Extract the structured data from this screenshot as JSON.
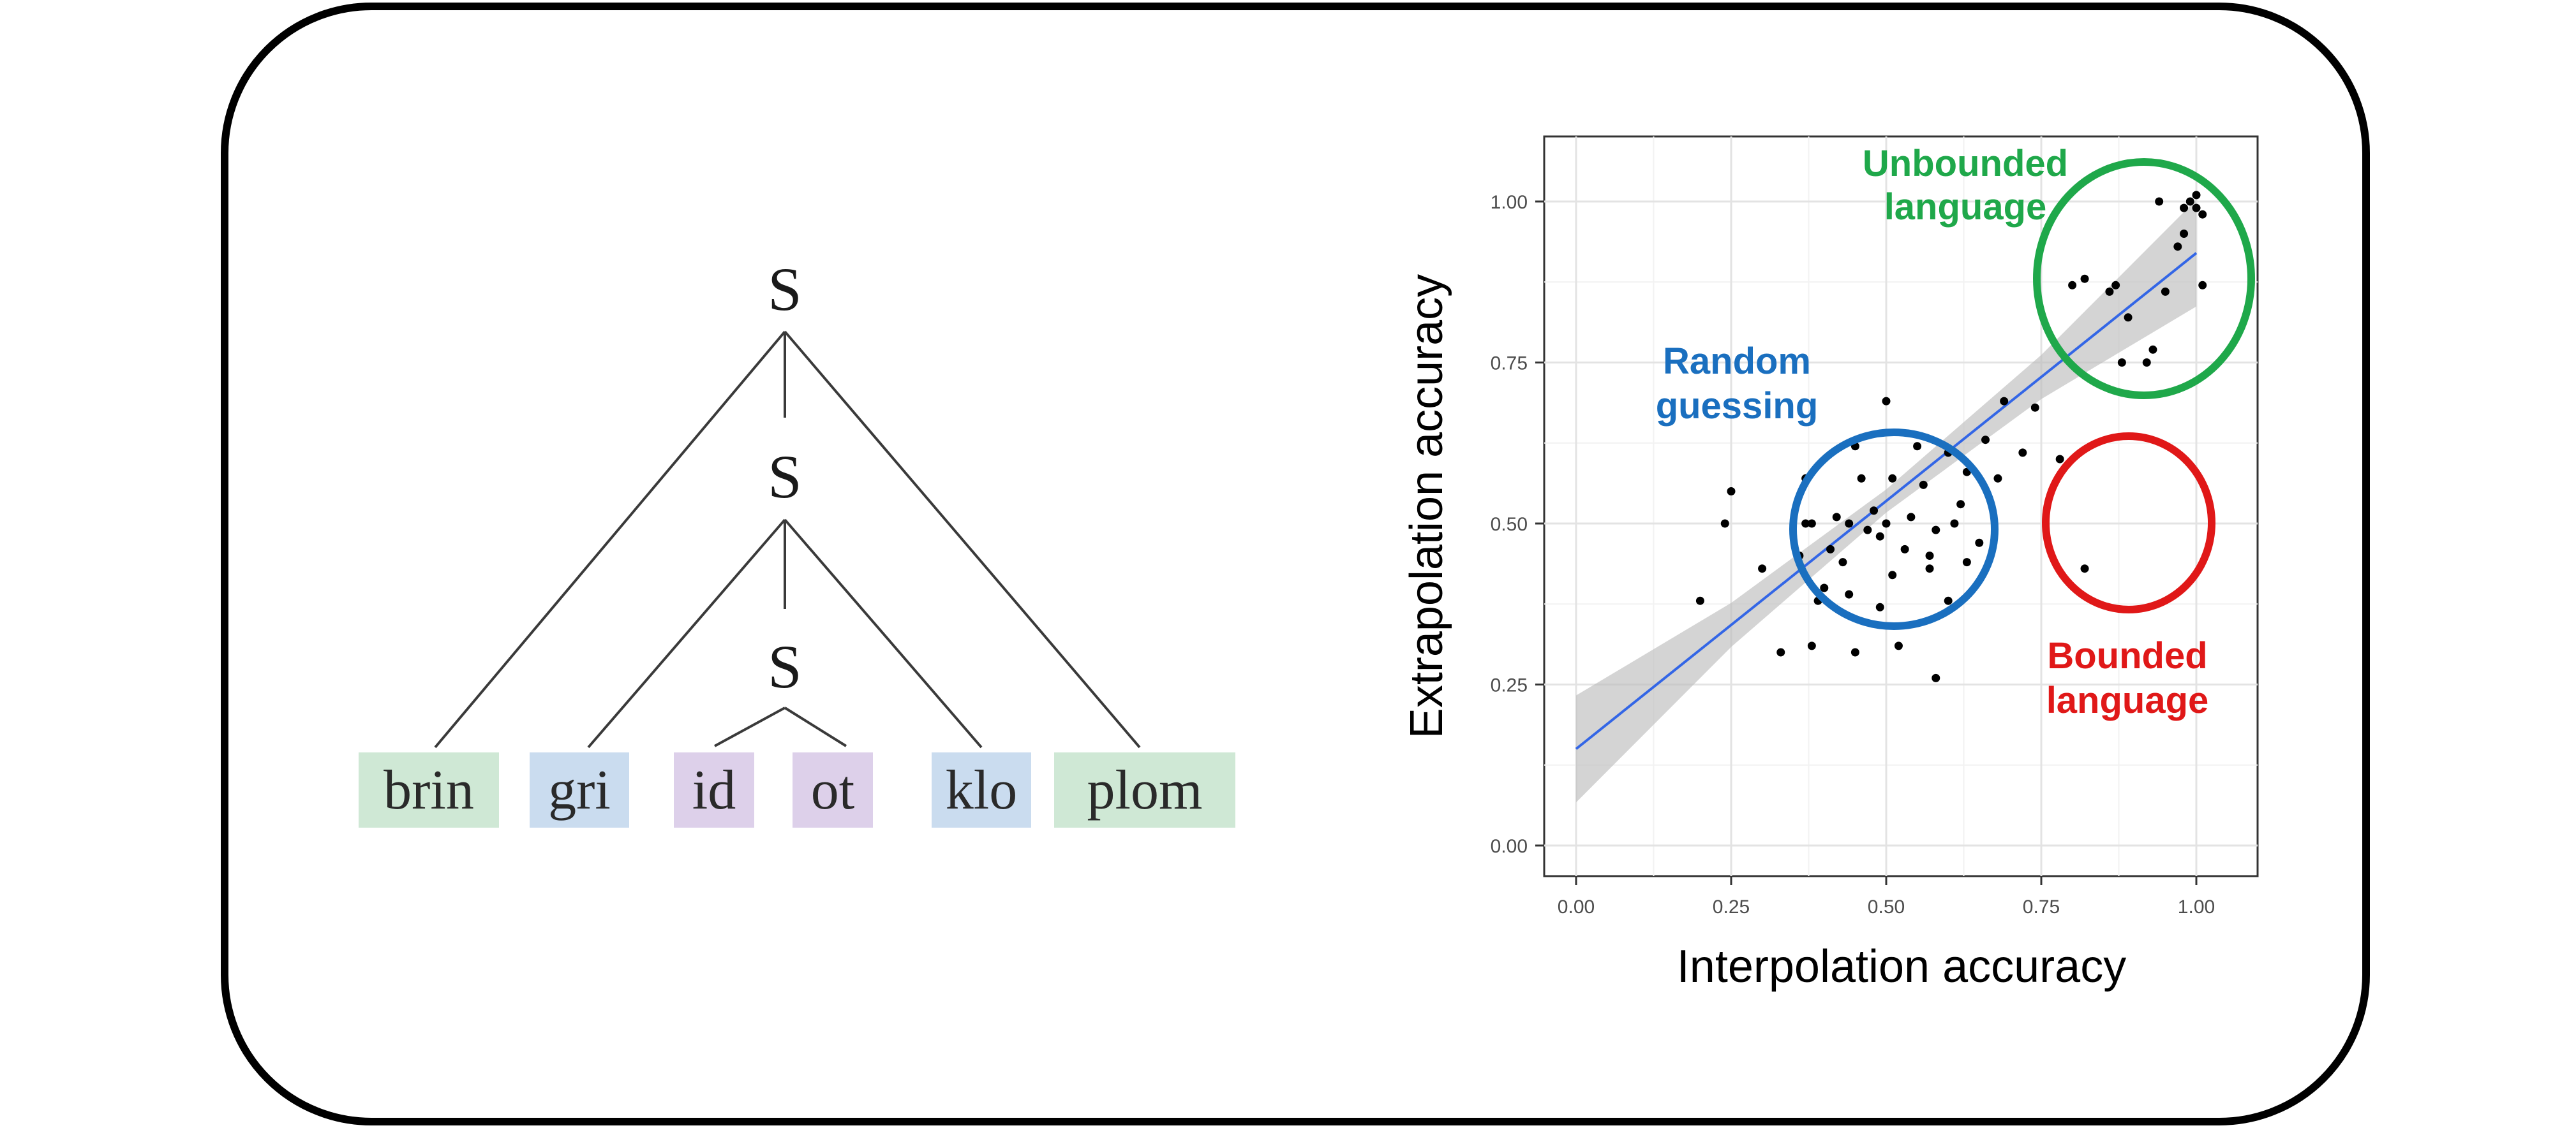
{
  "tree": {
    "nodes": [
      "S",
      "S",
      "S"
    ],
    "leaves": [
      {
        "label": "brin",
        "color": "#cfe8d5"
      },
      {
        "label": "gri",
        "color": "#cadcef"
      },
      {
        "label": "id",
        "color": "#ddd0ea"
      },
      {
        "label": "ot",
        "color": "#ddd0ea"
      },
      {
        "label": "klo",
        "color": "#cadcef"
      },
      {
        "label": "plom",
        "color": "#cfe8d5"
      }
    ]
  },
  "chart_data": {
    "type": "scatter",
    "xlabel": "Interpolation accuracy",
    "ylabel": "Extrapolation accuracy",
    "xlim": [
      0,
      1
    ],
    "ylim": [
      0,
      1
    ],
    "x_ticks": [
      "0.00",
      "0.25",
      "0.50",
      "0.75",
      "1.00"
    ],
    "y_ticks": [
      "0.00",
      "0.25",
      "0.50",
      "0.75",
      "1.00"
    ],
    "grid": true,
    "regression": {
      "intercept": 0.15,
      "slope": 0.77,
      "color": "#3366e6"
    },
    "points": [
      [
        0.2,
        0.38
      ],
      [
        0.24,
        0.5
      ],
      [
        0.25,
        0.55
      ],
      [
        0.3,
        0.43
      ],
      [
        0.33,
        0.3
      ],
      [
        0.36,
        0.45
      ],
      [
        0.37,
        0.5
      ],
      [
        0.37,
        0.57
      ],
      [
        0.38,
        0.5
      ],
      [
        0.38,
        0.31
      ],
      [
        0.39,
        0.38
      ],
      [
        0.4,
        0.4
      ],
      [
        0.41,
        0.46
      ],
      [
        0.42,
        0.51
      ],
      [
        0.43,
        0.44
      ],
      [
        0.44,
        0.5
      ],
      [
        0.44,
        0.39
      ],
      [
        0.45,
        0.3
      ],
      [
        0.45,
        0.62
      ],
      [
        0.46,
        0.57
      ],
      [
        0.47,
        0.49
      ],
      [
        0.48,
        0.52
      ],
      [
        0.49,
        0.37
      ],
      [
        0.49,
        0.48
      ],
      [
        0.5,
        0.69
      ],
      [
        0.5,
        0.5
      ],
      [
        0.51,
        0.42
      ],
      [
        0.51,
        0.57
      ],
      [
        0.52,
        0.31
      ],
      [
        0.53,
        0.46
      ],
      [
        0.54,
        0.51
      ],
      [
        0.55,
        0.62
      ],
      [
        0.56,
        0.56
      ],
      [
        0.57,
        0.43
      ],
      [
        0.57,
        0.45
      ],
      [
        0.58,
        0.26
      ],
      [
        0.58,
        0.49
      ],
      [
        0.6,
        0.61
      ],
      [
        0.6,
        0.38
      ],
      [
        0.61,
        0.5
      ],
      [
        0.62,
        0.53
      ],
      [
        0.63,
        0.58
      ],
      [
        0.63,
        0.44
      ],
      [
        0.65,
        0.47
      ],
      [
        0.66,
        0.63
      ],
      [
        0.68,
        0.57
      ],
      [
        0.69,
        0.69
      ],
      [
        0.72,
        0.61
      ],
      [
        0.74,
        0.68
      ],
      [
        0.78,
        0.6
      ],
      [
        0.82,
        0.43
      ],
      [
        0.8,
        0.87
      ],
      [
        0.82,
        0.88
      ],
      [
        0.86,
        0.86
      ],
      [
        0.87,
        0.87
      ],
      [
        0.88,
        0.75
      ],
      [
        0.89,
        0.82
      ],
      [
        0.92,
        0.75
      ],
      [
        0.93,
        0.77
      ],
      [
        0.94,
        1.0
      ],
      [
        0.95,
        0.86
      ],
      [
        0.97,
        0.93
      ],
      [
        0.98,
        0.99
      ],
      [
        0.98,
        0.95
      ],
      [
        0.99,
        1.0
      ],
      [
        1.0,
        1.01
      ],
      [
        1.0,
        0.99
      ],
      [
        1.01,
        0.98
      ],
      [
        1.01,
        0.87
      ]
    ],
    "annotations": [
      {
        "text": [
          "Unbounded",
          "language"
        ],
        "color": "#1fa84a"
      },
      {
        "text": [
          "Random",
          "guessing"
        ],
        "color": "#1a6fbf"
      },
      {
        "text": [
          "Bounded",
          "language"
        ],
        "color": "#e01818"
      }
    ]
  }
}
